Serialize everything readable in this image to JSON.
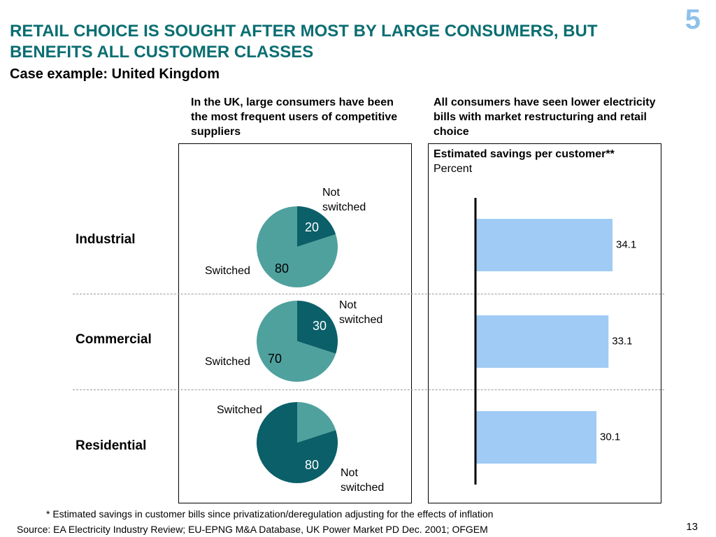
{
  "slide_number": "5",
  "title": "RETAIL CHOICE IS SOUGHT AFTER MOST BY LARGE CONSUMERS, BUT BENEFITS ALL CUSTOMER CLASSES",
  "subtitle": "Case example: United Kingdom",
  "left_heading": "In the UK, large consumers have been the most frequent users of competitive suppliers",
  "right_heading": "All consumers have seen lower electricity bills with market restructuring and retail choice",
  "footnote": "* Estimated savings in customer bills since privatization/deregulation adjusting for the effects of inflation",
  "source": "Source: EA Electricity Industry Review; EU-EPNG M&A Database, UK Power Market PD Dec. 2001; OFGEM",
  "page_number": "13",
  "colors": {
    "title": "#0a6e72",
    "switched": "#4fa19e",
    "not_switched": "#0b5f68",
    "bar": "#9fcbf5",
    "slide_number": "#8fc1ea"
  },
  "chart_data": [
    {
      "type": "pie",
      "title": "",
      "rows": [
        {
          "category": "Industrial",
          "slices": [
            {
              "name": "Not switched",
              "value": 20
            },
            {
              "name": "Switched",
              "value": 80
            }
          ]
        },
        {
          "category": "Commercial",
          "slices": [
            {
              "name": "Not switched",
              "value": 30
            },
            {
              "name": "Switched",
              "value": 70
            }
          ]
        },
        {
          "category": "Residential",
          "slices": [
            {
              "name": "Switched",
              "value": 20
            },
            {
              "name": "Not switched",
              "value": 80
            }
          ]
        }
      ]
    },
    {
      "type": "bar",
      "orientation": "horizontal",
      "title": "Estimated savings per customer**",
      "unit": "Percent",
      "categories": [
        "Industrial",
        "Commercial",
        "Residential"
      ],
      "values": [
        34.1,
        33.1,
        30.1
      ],
      "xlim": [
        0,
        40
      ]
    }
  ]
}
